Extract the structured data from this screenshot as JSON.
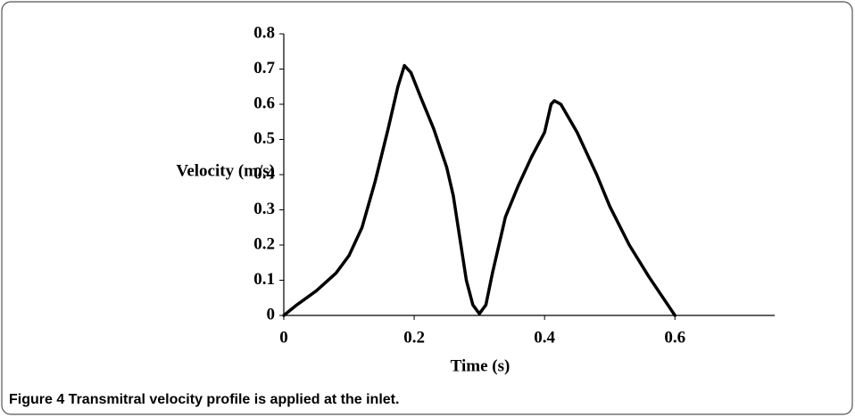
{
  "chart_data": {
    "type": "line",
    "caption": "Figure 4 Transmitral velocity profile is applied at the inlet.",
    "ylabel": "Velocity (m/s)",
    "xlabel": "Time (s)",
    "x": [
      0,
      0.02,
      0.05,
      0.08,
      0.1,
      0.12,
      0.14,
      0.16,
      0.175,
      0.185,
      0.195,
      0.21,
      0.23,
      0.25,
      0.26,
      0.27,
      0.28,
      0.29,
      0.3,
      0.31,
      0.32,
      0.34,
      0.36,
      0.38,
      0.4,
      0.405,
      0.41,
      0.415,
      0.425,
      0.45,
      0.48,
      0.5,
      0.53,
      0.56,
      0.6
    ],
    "series": [
      {
        "color": "#000000",
        "values": [
          0,
          0.03,
          0.07,
          0.12,
          0.17,
          0.25,
          0.38,
          0.53,
          0.65,
          0.71,
          0.69,
          0.62,
          0.53,
          0.42,
          0.34,
          0.22,
          0.1,
          0.03,
          0.005,
          0.03,
          0.12,
          0.28,
          0.37,
          0.45,
          0.52,
          0.56,
          0.6,
          0.61,
          0.6,
          0.52,
          0.4,
          0.31,
          0.2,
          0.11,
          0
        ]
      }
    ],
    "xlim": [
      0,
      0.753
    ],
    "ylim": [
      0,
      0.8
    ],
    "xticks": [
      0,
      0.2,
      0.4,
      0.6
    ],
    "yticks": [
      0,
      0.1,
      0.2,
      0.3,
      0.4,
      0.5,
      0.6,
      0.7,
      0.8
    ]
  }
}
